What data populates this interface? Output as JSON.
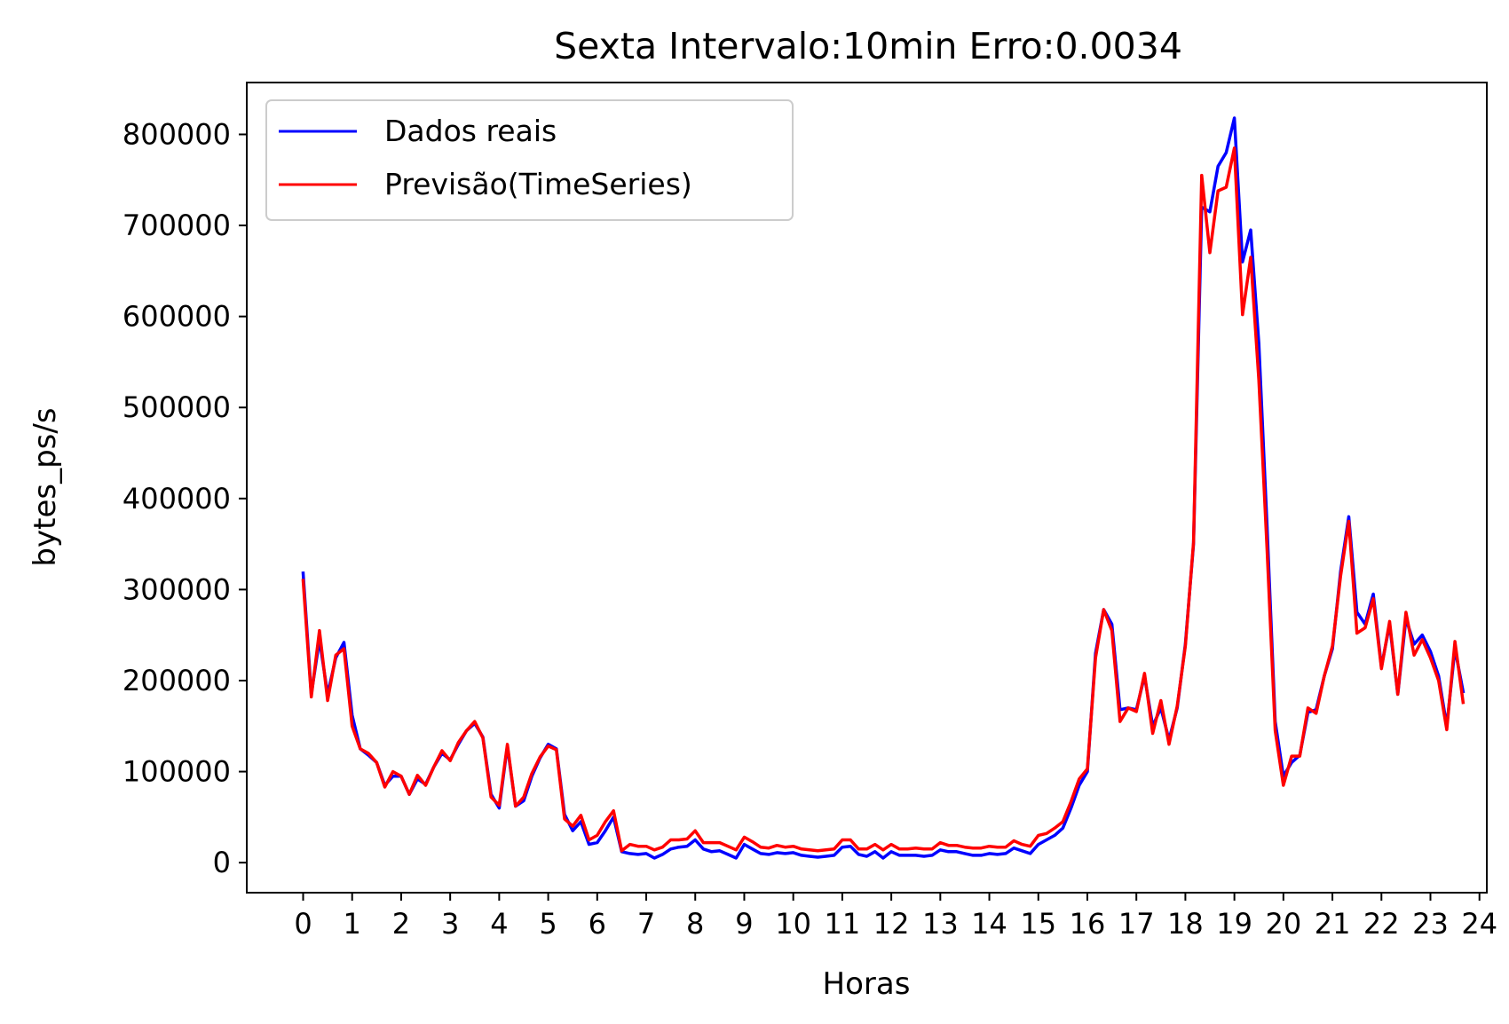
{
  "chart_data": {
    "type": "line",
    "title": "Sexta Intervalo:10min Erro:0.0034",
    "xlabel": "Horas",
    "ylabel": "bytes_ps/s",
    "xlim": [
      -1.15,
      24.15
    ],
    "ylim": [
      -33000,
      857000
    ],
    "xticks": [
      0,
      1,
      2,
      3,
      4,
      5,
      6,
      7,
      8,
      9,
      10,
      11,
      12,
      13,
      14,
      15,
      16,
      17,
      18,
      19,
      20,
      21,
      22,
      23,
      24
    ],
    "yticks": [
      0,
      100000,
      200000,
      300000,
      400000,
      500000,
      600000,
      700000,
      800000
    ],
    "grid": false,
    "legend_position": "top-left",
    "colors": {
      "real": "#0000ff",
      "forecast": "#ff0000"
    },
    "series": [
      {
        "name": "Dados reais",
        "color": "#0000ff",
        "x": [
          0.0,
          0.1667,
          0.3333,
          0.5,
          0.6667,
          0.8333,
          1.0,
          1.1667,
          1.3333,
          1.5,
          1.6667,
          1.8333,
          2.0,
          2.1667,
          2.3333,
          2.5,
          2.6667,
          2.8333,
          3.0,
          3.1667,
          3.3333,
          3.5,
          3.6667,
          3.8333,
          4.0,
          4.1667,
          4.3333,
          4.5,
          4.6667,
          4.8333,
          5.0,
          5.1667,
          5.3333,
          5.5,
          5.6667,
          5.8333,
          6.0,
          6.1667,
          6.3333,
          6.5,
          6.6667,
          6.8333,
          7.0,
          7.1667,
          7.3333,
          7.5,
          7.6667,
          7.8333,
          8.0,
          8.1667,
          8.3333,
          8.5,
          8.6667,
          8.8333,
          9.0,
          9.1667,
          9.3333,
          9.5,
          9.6667,
          9.8333,
          10.0,
          10.1667,
          10.3333,
          10.5,
          10.6667,
          10.8333,
          11.0,
          11.1667,
          11.3333,
          11.5,
          11.6667,
          11.8333,
          12.0,
          12.1667,
          12.3333,
          12.5,
          12.6667,
          12.8333,
          13.0,
          13.1667,
          13.3333,
          13.5,
          13.6667,
          13.8333,
          14.0,
          14.1667,
          14.3333,
          14.5,
          14.6667,
          14.8333,
          15.0,
          15.1667,
          15.3333,
          15.5,
          15.6667,
          15.8333,
          16.0,
          16.1667,
          16.3333,
          16.5,
          16.6667,
          16.8333,
          17.0,
          17.1667,
          17.3333,
          17.5,
          17.6667,
          17.8333,
          18.0,
          18.1667,
          18.3333,
          18.5,
          18.6667,
          18.8333,
          19.0,
          19.1667,
          19.3333,
          19.5,
          19.6667,
          19.8333,
          20.0,
          20.1667,
          20.3333,
          20.5,
          20.6667,
          20.8333,
          21.0,
          21.1667,
          21.3333,
          21.5,
          21.6667,
          21.8333,
          22.0,
          22.1667,
          22.3333,
          22.5,
          22.6667,
          22.8333,
          23.0,
          23.1667,
          23.3333,
          23.5,
          23.6667
        ],
        "y": [
          318000,
          185000,
          245000,
          185000,
          225000,
          242000,
          162000,
          125000,
          118000,
          110000,
          85000,
          95000,
          95000,
          75000,
          92000,
          86000,
          105000,
          120000,
          113000,
          130000,
          145000,
          153000,
          138000,
          75000,
          60000,
          128000,
          62000,
          68000,
          95000,
          115000,
          130000,
          125000,
          53000,
          35000,
          45000,
          20000,
          22000,
          35000,
          50000,
          12000,
          10000,
          9000,
          10000,
          5000,
          9000,
          15000,
          17000,
          18000,
          25000,
          15000,
          12000,
          13000,
          9000,
          5000,
          20000,
          15000,
          10000,
          9000,
          11000,
          10000,
          11000,
          8000,
          7000,
          6000,
          7000,
          8000,
          17000,
          18000,
          9000,
          7000,
          12000,
          5000,
          12000,
          8000,
          8000,
          8000,
          7000,
          8000,
          14000,
          12000,
          12000,
          10000,
          8000,
          8000,
          10000,
          9000,
          10000,
          16000,
          13000,
          10000,
          20000,
          25000,
          30000,
          38000,
          60000,
          85000,
          100000,
          230000,
          278000,
          262000,
          168000,
          170000,
          168000,
          205000,
          150000,
          170000,
          135000,
          170000,
          240000,
          350000,
          720000,
          715000,
          765000,
          780000,
          818000,
          660000,
          695000,
          570000,
          370000,
          155000,
          95000,
          110000,
          118000,
          165000,
          168000,
          205000,
          235000,
          320000,
          380000,
          275000,
          262000,
          295000,
          215000,
          262000,
          185000,
          268000,
          240000,
          250000,
          232000,
          205000,
          150000,
          235000,
          188000
        ]
      },
      {
        "name": "Previsão(TimeSeries)",
        "color": "#ff0000",
        "x": [
          0.0,
          0.1667,
          0.3333,
          0.5,
          0.6667,
          0.8333,
          1.0,
          1.1667,
          1.3333,
          1.5,
          1.6667,
          1.8333,
          2.0,
          2.1667,
          2.3333,
          2.5,
          2.6667,
          2.8333,
          3.0,
          3.1667,
          3.3333,
          3.5,
          3.6667,
          3.8333,
          4.0,
          4.1667,
          4.3333,
          4.5,
          4.6667,
          4.8333,
          5.0,
          5.1667,
          5.3333,
          5.5,
          5.6667,
          5.8333,
          6.0,
          6.1667,
          6.3333,
          6.5,
          6.6667,
          6.8333,
          7.0,
          7.1667,
          7.3333,
          7.5,
          7.6667,
          7.8333,
          8.0,
          8.1667,
          8.3333,
          8.5,
          8.6667,
          8.8333,
          9.0,
          9.1667,
          9.3333,
          9.5,
          9.6667,
          9.8333,
          10.0,
          10.1667,
          10.3333,
          10.5,
          10.6667,
          10.8333,
          11.0,
          11.1667,
          11.3333,
          11.5,
          11.6667,
          11.8333,
          12.0,
          12.1667,
          12.3333,
          12.5,
          12.6667,
          12.8333,
          13.0,
          13.1667,
          13.3333,
          13.5,
          13.6667,
          13.8333,
          14.0,
          14.1667,
          14.3333,
          14.5,
          14.6667,
          14.8333,
          15.0,
          15.1667,
          15.3333,
          15.5,
          15.6667,
          15.8333,
          16.0,
          16.1667,
          16.3333,
          16.5,
          16.6667,
          16.8333,
          17.0,
          17.1667,
          17.3333,
          17.5,
          17.6667,
          17.8333,
          18.0,
          18.1667,
          18.3333,
          18.5,
          18.6667,
          18.8333,
          19.0,
          19.1667,
          19.3333,
          19.5,
          19.6667,
          19.8333,
          20.0,
          20.1667,
          20.3333,
          20.5,
          20.6667,
          20.8333,
          21.0,
          21.1667,
          21.3333,
          21.5,
          21.6667,
          21.8333,
          22.0,
          22.1667,
          22.3333,
          22.5,
          22.6667,
          22.8333,
          23.0,
          23.1667,
          23.3333,
          23.5,
          23.6667
        ],
        "y": [
          310000,
          182000,
          255000,
          178000,
          228000,
          235000,
          150000,
          125000,
          120000,
          110000,
          83000,
          100000,
          95000,
          75000,
          96000,
          85000,
          105000,
          123000,
          112000,
          132000,
          145000,
          155000,
          137000,
          72000,
          63000,
          130000,
          62000,
          72000,
          98000,
          116000,
          128000,
          124000,
          48000,
          40000,
          52000,
          25000,
          30000,
          45000,
          57000,
          13000,
          20000,
          18000,
          18000,
          14000,
          17000,
          25000,
          25000,
          26000,
          35000,
          22000,
          22000,
          22000,
          18000,
          14000,
          28000,
          23000,
          17000,
          16000,
          19000,
          17000,
          18000,
          15000,
          14000,
          13000,
          14000,
          15000,
          25000,
          25000,
          15000,
          15000,
          20000,
          14000,
          20000,
          15000,
          15000,
          16000,
          15000,
          15000,
          22000,
          19000,
          19000,
          17000,
          16000,
          16000,
          18000,
          17000,
          17000,
          24000,
          20000,
          18000,
          30000,
          32000,
          38000,
          45000,
          67000,
          92000,
          103000,
          225000,
          278000,
          255000,
          155000,
          170000,
          166000,
          208000,
          142000,
          178000,
          130000,
          172000,
          238000,
          352000,
          755000,
          670000,
          738000,
          742000,
          785000,
          602000,
          665000,
          530000,
          345000,
          145000,
          85000,
          117000,
          117000,
          170000,
          164000,
          205000,
          238000,
          315000,
          375000,
          252000,
          258000,
          290000,
          213000,
          265000,
          185000,
          275000,
          228000,
          245000,
          225000,
          200000,
          146000,
          243000,
          176000
        ]
      }
    ]
  }
}
